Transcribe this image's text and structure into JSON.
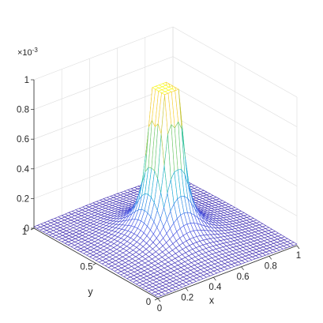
{
  "chart_data": {
    "type": "mesh",
    "surface": "four spike peaks near the centre of the xy domain",
    "xlabel": "x",
    "ylabel": "y",
    "zlabel": "",
    "xlim": [
      0,
      1
    ],
    "ylim": [
      0,
      1
    ],
    "zlim": [
      0,
      1
    ],
    "z_exponent_label": "×10",
    "z_exponent_value": "-3",
    "grid": true,
    "colormap": [
      "#3e26a8",
      "#4a5ae8",
      "#2a8fe6",
      "#17b5cf",
      "#3cc88e",
      "#a8c73c",
      "#f5c13a",
      "#f9fb15"
    ],
    "x_ticks": [
      {
        "value": 0,
        "label": "0"
      },
      {
        "value": 0.2,
        "label": "0.2"
      },
      {
        "value": 0.4,
        "label": "0.4"
      },
      {
        "value": 0.6,
        "label": "0.6"
      },
      {
        "value": 0.8,
        "label": "0.8"
      },
      {
        "value": 1,
        "label": "1"
      }
    ],
    "y_ticks": [
      {
        "value": 0,
        "label": "0"
      },
      {
        "value": 0.5,
        "label": "0.5"
      },
      {
        "value": 1,
        "label": "1"
      }
    ],
    "z_ticks": [
      {
        "value": 0,
        "label": "0"
      },
      {
        "value": 0.2,
        "label": "0.2"
      },
      {
        "value": 0.4,
        "label": "0.4"
      },
      {
        "value": 0.6,
        "label": "0.6"
      },
      {
        "value": 0.8,
        "label": "0.8"
      },
      {
        "value": 1,
        "label": "1"
      }
    ],
    "peaks_x": [
      0.46,
      0.54
    ],
    "peaks_y": [
      0.46,
      0.54
    ],
    "peak_max": 1.0,
    "mesh_resolution": 40
  }
}
